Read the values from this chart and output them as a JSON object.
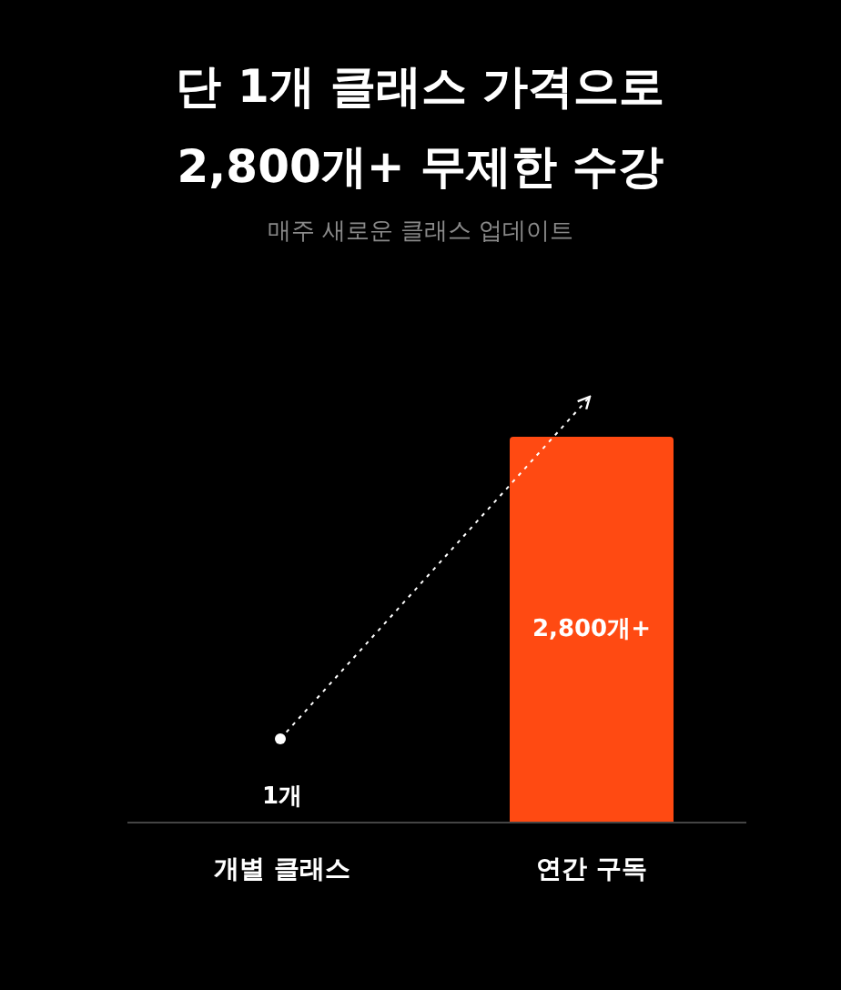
{
  "chart_data": {
    "type": "bar",
    "title": "단 1개 클래스 가격으로 2,800개+ 무제한 수강",
    "subtitle": "매주 새로운 클래스 업데이트",
    "categories": [
      "개별 클래스",
      "연간 구독"
    ],
    "values": [
      1,
      2800
    ],
    "colors": [
      "#3a3a3a",
      "#ff4a12"
    ],
    "value_labels": [
      "1개",
      "2,800개+"
    ],
    "legend": false,
    "grid": false
  }
}
